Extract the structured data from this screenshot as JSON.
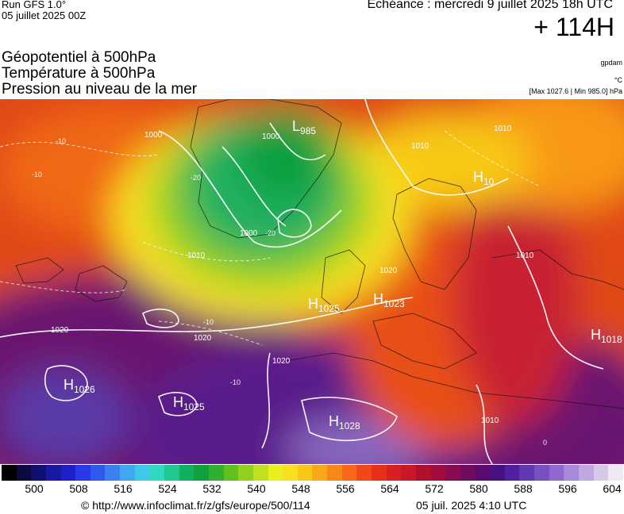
{
  "header": {
    "run_title": "Run GFS 1.0°",
    "run_date": "05 juillet 2025 00Z",
    "valid_time": "Echéance : mercredi 9 juillet 2025 18h UTC",
    "lead_time": "+ 114H"
  },
  "layers": [
    "Géopotentiel à 500hPa",
    "Température à 500hPa",
    "Pression au niveau de la mer"
  ],
  "units": {
    "geopotential": "gpdam",
    "temperature": "°C",
    "pressure": "[Max 1027.6 | Min 985.0] hPa"
  },
  "map": {
    "pressure_centers": [
      {
        "type": "H",
        "value": "1025",
        "region": "Azores-west"
      },
      {
        "type": "H",
        "value": "1025",
        "region": "Bay-of-Biscay"
      },
      {
        "type": "H",
        "value": "1023",
        "region": "North-Sea"
      },
      {
        "type": "H",
        "value": "1026",
        "region": "Atlantic-southwest"
      },
      {
        "type": "H",
        "value": "1028",
        "region": "North-Africa"
      },
      {
        "type": "H",
        "value": "1018",
        "region": "Black-Sea"
      },
      {
        "type": "H",
        "value": "10",
        "region": "Russia-north"
      },
      {
        "type": "L",
        "value": "985",
        "region": "Greenland"
      }
    ],
    "isobar_labels": [
      "1000",
      "1000",
      "1000",
      "1010",
      "1010",
      "1010",
      "1010",
      "1020",
      "1020",
      "1020",
      "1020",
      "1010",
      "1010",
      "1010",
      "1010"
    ],
    "isotherm_labels": [
      "-10",
      "-10",
      "-10",
      "-10",
      "-20",
      "-20",
      "-10",
      "0",
      "0"
    ]
  },
  "colorbar": {
    "ticks": [
      "500",
      "508",
      "516",
      "524",
      "532",
      "540",
      "548",
      "556",
      "564",
      "572",
      "580",
      "588",
      "596",
      "604"
    ],
    "colors": [
      "#000000",
      "#0a0a40",
      "#101070",
      "#1818a0",
      "#2020c8",
      "#2a3ae8",
      "#2f5af0",
      "#3a80f0",
      "#40a8f0",
      "#40c8e8",
      "#30d8c0",
      "#20c890",
      "#10b060",
      "#10a040",
      "#30b030",
      "#60c020",
      "#90d020",
      "#c0e020",
      "#e8f020",
      "#f8e020",
      "#f8c818",
      "#f8a818",
      "#f88818",
      "#f86818",
      "#f04818",
      "#e83018",
      "#d82020",
      "#c81828",
      "#b01030",
      "#a00c40",
      "#880c50",
      "#700c60",
      "#5a0a70",
      "#481080",
      "#5020a0",
      "#6038b0",
      "#7850c0",
      "#9068d0",
      "#a888d8",
      "#c0a8e0",
      "#d8c8e8",
      "#f0e8f4"
    ]
  },
  "footer": {
    "url": "© http://www.infoclimat.fr/z/gfs/europe/500/114",
    "time": "05 juil. 2025  4:10 UTC"
  }
}
